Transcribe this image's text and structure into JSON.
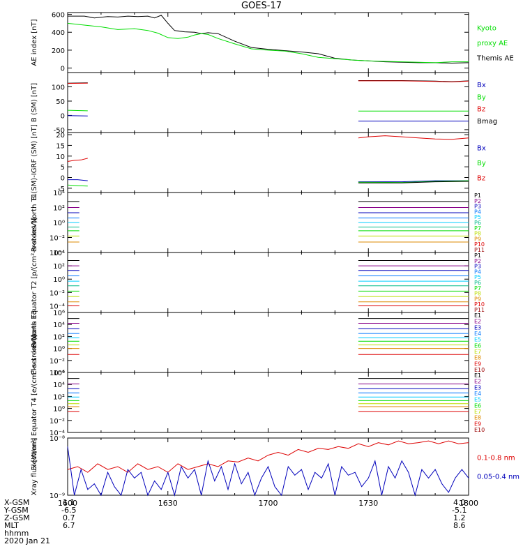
{
  "title": "GOES-17",
  "colors": {
    "black": "#000000",
    "green": "#00dd00",
    "red": "#dd0000",
    "blue": "#0000bb"
  },
  "x_axis": {
    "tick_labels": [
      "1600",
      "1630",
      "1700",
      "1730",
      "1800"
    ],
    "range": [
      0,
      120
    ],
    "unit": "minutes from 1600"
  },
  "orbit": {
    "rows": [
      {
        "label": "X-GSM",
        "start": "1.1",
        "end": "4.0"
      },
      {
        "label": "Y-GSM",
        "start": "-6.5",
        "end": "-5.1"
      },
      {
        "label": "Z-GSM",
        "start": "0.7",
        "end": "1.2"
      },
      {
        "label": "MLT",
        "start": "6.7",
        "end": "8.6"
      },
      {
        "label": "hhmm",
        "start": "1600",
        "end": "1800"
      }
    ],
    "date": "2020 Jan 21"
  },
  "chart_data": [
    {
      "type": "line",
      "ylabel": "AE index [nT]",
      "ylim": [
        -50,
        620
      ],
      "yticks": [
        {
          "v": 0,
          "t": "0"
        },
        {
          "v": 200,
          "t": "200"
        },
        {
          "v": 400,
          "t": "400"
        },
        {
          "v": 600,
          "t": "600"
        }
      ],
      "legend": [
        {
          "text": "Kyoto",
          "color": "#00dd00"
        },
        {
          "text": "proxy AE",
          "color": "#00dd00"
        },
        {
          "text": "Themis AE",
          "color": "#000000"
        }
      ],
      "series": [
        {
          "name": "Themis AE",
          "color": "#000000",
          "x": [
            0,
            5,
            8,
            12,
            15,
            18,
            21,
            24,
            26,
            28,
            30,
            32,
            35,
            38,
            40,
            42,
            45,
            50,
            55,
            60,
            65,
            70,
            75,
            80,
            85,
            90,
            95,
            100,
            105,
            110,
            115,
            120
          ],
          "y": [
            580,
            580,
            560,
            575,
            570,
            580,
            575,
            580,
            560,
            590,
            500,
            420,
            405,
            400,
            385,
            395,
            385,
            300,
            230,
            210,
            195,
            180,
            160,
            110,
            90,
            80,
            70,
            65,
            60,
            60,
            55,
            60
          ]
        },
        {
          "name": "Kyoto proxy AE",
          "color": "#00dd00",
          "x": [
            0,
            5,
            10,
            15,
            20,
            24,
            27,
            30,
            33,
            36,
            38,
            40,
            42,
            45,
            50,
            55,
            60,
            65,
            70,
            75,
            80,
            85,
            90,
            95,
            100,
            105,
            110,
            115,
            120
          ],
          "y": [
            500,
            480,
            460,
            430,
            440,
            420,
            390,
            340,
            330,
            345,
            370,
            385,
            375,
            330,
            270,
            215,
            200,
            190,
            160,
            120,
            105,
            90,
            80,
            75,
            70,
            65,
            60,
            70,
            70
          ]
        }
      ]
    },
    {
      "type": "line",
      "ylabel": "B (SM) [nT]",
      "ylim": [
        -60,
        150
      ],
      "yticks": [
        {
          "v": -50,
          "t": "-50"
        },
        {
          "v": 0,
          "t": "0"
        },
        {
          "v": 50,
          "t": "50"
        },
        {
          "v": 100,
          "t": "100"
        }
      ],
      "legend": [
        {
          "text": "Bx",
          "color": "#0000bb"
        },
        {
          "text": "By",
          "color": "#00dd00"
        },
        {
          "text": "Bz",
          "color": "#dd0000"
        },
        {
          "text": "Bmag",
          "color": "#000000"
        }
      ],
      "series": [
        {
          "name": "Bmag",
          "color": "#000000",
          "x": [
            0,
            6
          ],
          "y": [
            113,
            114
          ]
        },
        {
          "name": "Bz",
          "color": "#dd0000",
          "x": [
            0,
            6
          ],
          "y": [
            112,
            113
          ]
        },
        {
          "name": "By",
          "color": "#00dd00",
          "x": [
            0,
            6
          ],
          "y": [
            18,
            16
          ]
        },
        {
          "name": "Bx",
          "color": "#0000bb",
          "x": [
            0,
            6
          ],
          "y": [
            -1,
            -2
          ]
        },
        {
          "name": "Bmag2",
          "color": "#000000",
          "x": [
            87,
            100,
            110,
            115,
            120
          ],
          "y": [
            122,
            122,
            120,
            118,
            121
          ]
        },
        {
          "name": "Bz2",
          "color": "#dd0000",
          "x": [
            87,
            100,
            110,
            115,
            120
          ],
          "y": [
            121,
            121,
            119,
            117,
            120
          ]
        },
        {
          "name": "By2",
          "color": "#00dd00",
          "x": [
            87,
            120
          ],
          "y": [
            15,
            15
          ]
        },
        {
          "name": "Bx2",
          "color": "#0000bb",
          "x": [
            87,
            120
          ],
          "y": [
            -20,
            -20
          ]
        }
      ]
    },
    {
      "type": "line",
      "ylabel": "B (SM)-IGRF (SM) [nT]",
      "ylim": [
        -7,
        21
      ],
      "yticks": [
        {
          "v": -5,
          "t": "-5"
        },
        {
          "v": 0,
          "t": "0"
        },
        {
          "v": 5,
          "t": "5"
        },
        {
          "v": 10,
          "t": "10"
        },
        {
          "v": 15,
          "t": "15"
        },
        {
          "v": 20,
          "t": "20"
        }
      ],
      "legend": [
        {
          "text": "Bx",
          "color": "#0000bb"
        },
        {
          "text": "By",
          "color": "#00dd00"
        },
        {
          "text": "Bz",
          "color": "#dd0000"
        }
      ],
      "series": [
        {
          "name": "Bz",
          "color": "#dd0000",
          "x": [
            0,
            2,
            4,
            6
          ],
          "y": [
            7.5,
            8,
            8.2,
            9
          ]
        },
        {
          "name": "Bx",
          "color": "#0000bb",
          "x": [
            0,
            3,
            6
          ],
          "y": [
            -1,
            -1,
            -1.5
          ]
        },
        {
          "name": "By",
          "color": "#00dd00",
          "x": [
            0,
            3,
            6
          ],
          "y": [
            -3.5,
            -3.8,
            -4
          ]
        },
        {
          "name": "Bz2",
          "color": "#dd0000",
          "x": [
            87,
            90,
            95,
            100,
            105,
            110,
            115,
            120
          ],
          "y": [
            18.5,
            19,
            19.5,
            19,
            18.5,
            18,
            17.8,
            18.5
          ]
        },
        {
          "name": "Bx2",
          "color": "#0000bb",
          "x": [
            87,
            100,
            110,
            120
          ],
          "y": [
            -2,
            -2,
            -1.5,
            -1.5
          ]
        },
        {
          "name": "By2",
          "color": "#00dd00",
          "x": [
            87,
            100,
            110,
            120
          ],
          "y": [
            -2.2,
            -2.3,
            -1.8,
            -1.5
          ]
        },
        {
          "name": "blk",
          "color": "#000000",
          "x": [
            87,
            100,
            110,
            120
          ],
          "y": [
            -2.5,
            -2.5,
            -2,
            -1.8
          ]
        }
      ]
    },
    {
      "type": "line",
      "log": true,
      "ylabel": "Protons North T1",
      "ylim": [
        -4,
        4
      ],
      "yticks": [
        {
          "v": -4,
          "t": "10⁻⁴"
        },
        {
          "v": -2,
          "t": "10⁻²"
        },
        {
          "v": 0,
          "t": "10⁰"
        },
        {
          "v": 2,
          "t": "10²"
        },
        {
          "v": 4,
          "t": "10⁴"
        }
      ],
      "legend": [
        {
          "text": "P1",
          "color": "#000000"
        },
        {
          "text": "P2",
          "color": "#880088"
        },
        {
          "text": "P3",
          "color": "#0000bb"
        },
        {
          "text": "P4",
          "color": "#0077ff"
        },
        {
          "text": "P5",
          "color": "#00ccff"
        },
        {
          "text": "P6",
          "color": "#00bb88"
        },
        {
          "text": "P7",
          "color": "#00dd00"
        },
        {
          "text": "P8",
          "color": "#bbdd00"
        },
        {
          "text": "P9",
          "color": "#dd8800"
        },
        {
          "text": "P10",
          "color": "#dd0000"
        },
        {
          "text": "P11",
          "color": "#990000"
        }
      ],
      "flat_lines": {
        "left_end": 3.5,
        "right_start": 87,
        "values": [
          2.8,
          2.0,
          1.3,
          0.6,
          0.0,
          -0.6,
          -1.1,
          -1.8,
          -2.6
        ]
      }
    },
    {
      "type": "line",
      "log": true,
      "ylabel": "Protons Equator T2 [p/(cm²-s-sr-keV)]",
      "ylim": [
        -5,
        4
      ],
      "yticks": [
        {
          "v": -4,
          "t": "10⁻⁴"
        },
        {
          "v": -2,
          "t": "10⁻²"
        },
        {
          "v": 0,
          "t": "10⁰"
        },
        {
          "v": 2,
          "t": "10²"
        },
        {
          "v": 4,
          "t": "10⁴"
        }
      ],
      "legend": [
        {
          "text": "P1",
          "color": "#000000"
        },
        {
          "text": "P2",
          "color": "#880088"
        },
        {
          "text": "P3",
          "color": "#0000bb"
        },
        {
          "text": "P4",
          "color": "#0077ff"
        },
        {
          "text": "P5",
          "color": "#00ccff"
        },
        {
          "text": "P6",
          "color": "#00bb88"
        },
        {
          "text": "P7",
          "color": "#00dd00"
        },
        {
          "text": "P8",
          "color": "#bbdd00"
        },
        {
          "text": "P9",
          "color": "#dd8800"
        },
        {
          "text": "P10",
          "color": "#dd0000"
        },
        {
          "text": "P11",
          "color": "#990000"
        }
      ],
      "flat_lines": {
        "left_end": 3.5,
        "right_start": 87,
        "values": [
          2.8,
          2.0,
          1.3,
          0.5,
          -0.3,
          -1.0,
          -1.8,
          -2.6,
          -3.4,
          -4.0
        ]
      }
    },
    {
      "type": "line",
      "log": true,
      "ylabel": "Electrons North T3",
      "ylim": [
        -4,
        6
      ],
      "yticks": [
        {
          "v": -4,
          "t": "10⁻⁴"
        },
        {
          "v": -2,
          "t": "10⁻²"
        },
        {
          "v": 0,
          "t": "10⁰"
        },
        {
          "v": 2,
          "t": "10²"
        },
        {
          "v": 4,
          "t": "10⁴"
        },
        {
          "v": 6,
          "t": "10⁶"
        }
      ],
      "legend": [
        {
          "text": "E1",
          "color": "#000000"
        },
        {
          "text": "E2",
          "color": "#880088"
        },
        {
          "text": "E3",
          "color": "#0000bb"
        },
        {
          "text": "E4",
          "color": "#0077ff"
        },
        {
          "text": "E5",
          "color": "#00ccff"
        },
        {
          "text": "E6",
          "color": "#00dd00"
        },
        {
          "text": "E7",
          "color": "#bbdd00"
        },
        {
          "text": "E8",
          "color": "#dd8800"
        },
        {
          "text": "E9",
          "color": "#dd0000"
        },
        {
          "text": "E10",
          "color": "#990000"
        }
      ],
      "flat_lines": {
        "left_end": 3.5,
        "right_start": 87,
        "values": [
          5.0,
          4.2,
          3.3,
          2.5,
          1.8,
          1.2,
          0.6,
          0.0,
          -1.0
        ]
      }
    },
    {
      "type": "line",
      "log": true,
      "ylabel": "Electrons Equator T4 [e/(cm²-s-sr-keV)]",
      "ylim": [
        -4,
        6
      ],
      "yticks": [
        {
          "v": -4,
          "t": "10⁻⁴"
        },
        {
          "v": -2,
          "t": "10⁻²"
        },
        {
          "v": 0,
          "t": "10⁰"
        },
        {
          "v": 2,
          "t": "10²"
        },
        {
          "v": 4,
          "t": "10⁴"
        },
        {
          "v": 6,
          "t": "10⁶"
        }
      ],
      "legend": [
        {
          "text": "E1",
          "color": "#000000"
        },
        {
          "text": "E2",
          "color": "#880088"
        },
        {
          "text": "E3",
          "color": "#0000bb"
        },
        {
          "text": "E4",
          "color": "#0077ff"
        },
        {
          "text": "E5",
          "color": "#00ccff"
        },
        {
          "text": "E6",
          "color": "#00dd00"
        },
        {
          "text": "E7",
          "color": "#bbdd00"
        },
        {
          "text": "E8",
          "color": "#dd8800"
        },
        {
          "text": "E9",
          "color": "#dd0000"
        },
        {
          "text": "E10",
          "color": "#990000"
        }
      ],
      "flat_lines": {
        "left_end": 3.5,
        "right_start": 87,
        "values": [
          5.0,
          4.1,
          3.3,
          2.6,
          1.9,
          1.3,
          0.8,
          0.3,
          -0.5
        ]
      }
    },
    {
      "type": "line",
      "log": true,
      "ylabel": "Xray flux [W/m²]",
      "ylim": [
        -9,
        -8
      ],
      "yticks": [
        {
          "v": -9,
          "t": "10⁻⁹"
        },
        {
          "v": -8,
          "t": "10⁻⁸"
        }
      ],
      "legend": [
        {
          "text": "0.1-0.8 nm",
          "color": "#dd0000"
        },
        {
          "text": "0.05-0.4 nm",
          "color": "#0000bb"
        }
      ],
      "series": [
        {
          "name": "0.1-0.8 nm",
          "color": "#dd0000",
          "x": [
            0,
            3,
            6,
            9,
            12,
            15,
            18,
            21,
            24,
            27,
            30,
            33,
            36,
            39,
            42,
            45,
            48,
            51,
            54,
            57,
            60,
            63,
            66,
            69,
            72,
            75,
            78,
            81,
            84,
            87,
            90,
            93,
            96,
            99,
            102,
            105,
            108,
            111,
            114,
            117,
            120
          ],
          "y": [
            -8.55,
            -8.5,
            -8.6,
            -8.45,
            -8.55,
            -8.5,
            -8.6,
            -8.45,
            -8.55,
            -8.5,
            -8.6,
            -8.45,
            -8.55,
            -8.5,
            -8.45,
            -8.5,
            -8.4,
            -8.42,
            -8.35,
            -8.4,
            -8.3,
            -8.25,
            -8.3,
            -8.2,
            -8.25,
            -8.18,
            -8.2,
            -8.15,
            -8.18,
            -8.1,
            -8.15,
            -8.08,
            -8.12,
            -8.05,
            -8.1,
            -8.08,
            -8.05,
            -8.1,
            -8.05,
            -8.1,
            -8.08
          ]
        },
        {
          "name": "0.05-0.4 nm",
          "color": "#0000bb",
          "x": [
            0,
            2,
            4,
            6,
            8,
            10,
            12,
            14,
            16,
            18,
            20,
            22,
            24,
            26,
            28,
            30,
            32,
            34,
            36,
            38,
            40,
            42,
            44,
            46,
            48,
            50,
            52,
            54,
            56,
            58,
            60,
            62,
            64,
            66,
            68,
            70,
            72,
            74,
            76,
            78,
            80,
            82,
            84,
            86,
            88,
            90,
            92,
            94,
            96,
            98,
            100,
            102,
            104,
            106,
            108,
            110,
            112,
            114,
            116,
            118,
            120
          ],
          "y": [
            -8.15,
            -9.0,
            -8.55,
            -8.9,
            -8.8,
            -9.0,
            -8.6,
            -8.85,
            -9.0,
            -8.55,
            -8.7,
            -8.6,
            -9.0,
            -8.75,
            -8.9,
            -8.6,
            -9.0,
            -8.5,
            -8.7,
            -8.55,
            -9.0,
            -8.4,
            -8.75,
            -8.5,
            -8.9,
            -8.45,
            -8.8,
            -8.6,
            -9.0,
            -8.7,
            -8.5,
            -8.85,
            -9.0,
            -8.5,
            -8.65,
            -8.55,
            -8.9,
            -8.6,
            -8.7,
            -8.45,
            -9.0,
            -8.5,
            -8.65,
            -8.6,
            -8.85,
            -8.7,
            -8.4,
            -9.0,
            -8.5,
            -8.7,
            -8.4,
            -8.6,
            -9.0,
            -8.55,
            -8.7,
            -8.55,
            -8.8,
            -8.95,
            -8.7,
            -8.55,
            -8.7
          ]
        }
      ]
    }
  ]
}
